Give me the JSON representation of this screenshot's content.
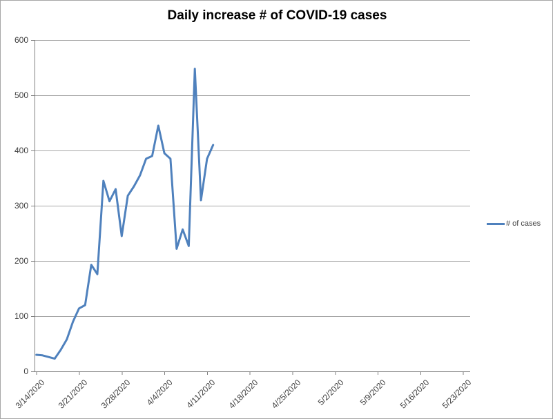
{
  "chart_data": {
    "type": "line",
    "title": "Daily increase # of COVID-19 cases",
    "x": [
      "3/14/2020",
      "3/15/2020",
      "3/16/2020",
      "3/17/2020",
      "3/18/2020",
      "3/19/2020",
      "3/20/2020",
      "3/21/2020",
      "3/22/2020",
      "3/23/2020",
      "3/24/2020",
      "3/25/2020",
      "3/26/2020",
      "3/27/2020",
      "3/28/2020",
      "3/29/2020",
      "3/30/2020",
      "3/31/2020",
      "4/1/2020",
      "4/2/2020",
      "4/3/2020",
      "4/4/2020",
      "4/5/2020",
      "4/6/2020",
      "4/7/2020",
      "4/8/2020",
      "4/9/2020",
      "4/10/2020",
      "4/11/2020",
      "4/12/2020"
    ],
    "series": [
      {
        "name": "# of cases",
        "values": [
          30,
          29,
          26,
          23,
          39,
          58,
          90,
          114,
          120,
          193,
          176,
          345,
          308,
          330,
          245,
          318,
          335,
          355,
          385,
          390,
          445,
          395,
          385,
          222,
          257,
          227,
          548,
          310,
          385,
          410
        ]
      }
    ],
    "x_tick_labels": [
      "3/14/2020",
      "3/21/2020",
      "3/28/2020",
      "4/4/2020",
      "4/11/2020",
      "4/18/2020",
      "4/25/2020",
      "5/2/2020",
      "5/9/2020",
      "5/16/2020",
      "5/23/2020"
    ],
    "y_ticks": [
      0,
      100,
      200,
      300,
      400,
      500,
      600
    ],
    "ylim": [
      0,
      600
    ],
    "grid": "horizontal-only",
    "legend_position": "right-middle"
  },
  "legend": {
    "label": "# of cases"
  },
  "colors": {
    "line": "#4F81BD",
    "gridline": "#A6A6A6",
    "axis": "#808080",
    "label_text": "#404040",
    "title_text": "#000000",
    "frame_border": "#A6A6A6",
    "background": "#FFFFFF"
  }
}
